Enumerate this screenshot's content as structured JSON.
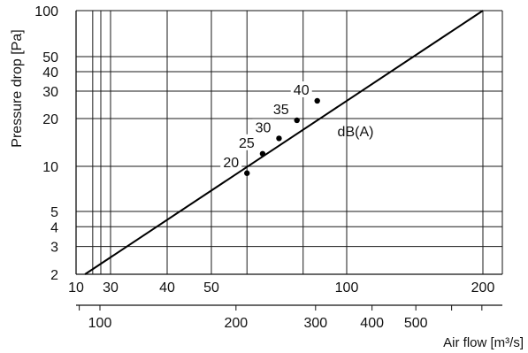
{
  "chart_data": {
    "type": "line",
    "x_scale": "log",
    "y_scale": "log",
    "xlabel": "",
    "x2label": "Air flow [m³/s]",
    "ylabel": "Pressure drop  [Pa]",
    "xlim": [
      10,
      300
    ],
    "ylim": [
      2,
      100
    ],
    "grid": true,
    "x_ticks": [
      10,
      30,
      40,
      50,
      100,
      200
    ],
    "x2_ticks": [
      100,
      200,
      300,
      400,
      500
    ],
    "y_ticks": [
      2,
      3,
      4,
      5,
      10,
      20,
      30,
      40,
      50,
      100
    ],
    "x_gridlines": [
      17,
      22,
      30,
      40,
      50,
      60,
      80,
      100,
      200
    ],
    "y_gridlines": [
      2,
      3,
      4,
      5,
      10,
      20,
      30,
      40,
      50,
      100
    ],
    "series": [
      {
        "x": [
          13.3,
          200
        ],
        "y": [
          2,
          100
        ]
      }
    ],
    "points": [
      {
        "x": 60,
        "y": 9,
        "label": "20"
      },
      {
        "x": 65,
        "y": 12,
        "label": "25"
      },
      {
        "x": 70.7,
        "y": 15,
        "label": "30"
      },
      {
        "x": 77.5,
        "y": 19.5,
        "label": "35"
      },
      {
        "x": 86,
        "y": 26,
        "label": "40"
      }
    ],
    "annotation": "dB(A)"
  }
}
